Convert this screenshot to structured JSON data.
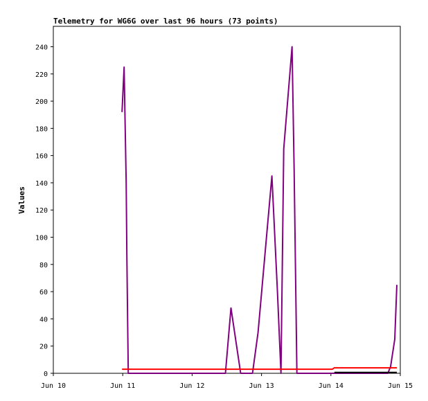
{
  "chart_data": {
    "type": "line",
    "title": "Telemetry for WG6G over last 96 hours (73 points)",
    "xlabel": "",
    "ylabel": "Values",
    "x_ticks": [
      {
        "label": "Jun 10",
        "day": 10
      },
      {
        "label": "Jun 11",
        "day": 11
      },
      {
        "label": "Jun 12",
        "day": 12
      },
      {
        "label": "Jun 13",
        "day": 13
      },
      {
        "label": "Jun 14",
        "day": 14
      },
      {
        "label": "Jun 15",
        "day": 15
      }
    ],
    "xlim": [
      10,
      15
    ],
    "ylim": [
      0,
      255
    ],
    "y_ticks": [
      0,
      20,
      40,
      60,
      80,
      100,
      120,
      140,
      160,
      180,
      200,
      220,
      240
    ],
    "grid": false,
    "legend": "none",
    "series": [
      {
        "color": "#800080",
        "points": [
          [
            10.99,
            192
          ],
          [
            11.02,
            225
          ],
          [
            11.05,
            140
          ],
          [
            11.06,
            85
          ],
          [
            11.08,
            0
          ],
          [
            12.38,
            0
          ],
          [
            12.48,
            0
          ],
          [
            12.56,
            48
          ],
          [
            12.7,
            0
          ],
          [
            12.87,
            0
          ],
          [
            12.95,
            30
          ],
          [
            13.15,
            145
          ],
          [
            13.23,
            60
          ],
          [
            13.28,
            0
          ],
          [
            13.32,
            165
          ],
          [
            13.44,
            240
          ],
          [
            13.47,
            150
          ],
          [
            13.51,
            0
          ],
          [
            14.82,
            0
          ],
          [
            14.86,
            5
          ],
          [
            14.92,
            25
          ],
          [
            14.95,
            65
          ]
        ]
      },
      {
        "color": "#ff0000",
        "points": [
          [
            10.99,
            3
          ],
          [
            14.02,
            3
          ],
          [
            14.05,
            4
          ],
          [
            14.95,
            4
          ]
        ]
      },
      {
        "color": "#000000",
        "points": [
          [
            14.05,
            0.6
          ],
          [
            14.95,
            0.6
          ]
        ]
      }
    ]
  }
}
